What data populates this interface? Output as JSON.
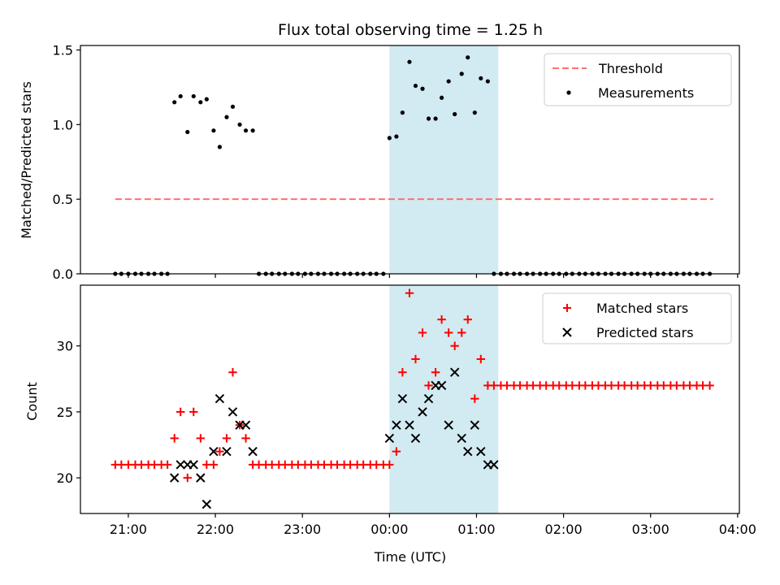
{
  "chart_data": [
    {
      "type": "scatter",
      "title": "Flux total observing time = 1.25 h",
      "xlabel": "",
      "ylabel": "Matched/Predicted stars",
      "x_unit": "hours since 00:00 UTC",
      "xlim": [
        -3.55,
        4.02
      ],
      "ylim": [
        0,
        1.53
      ],
      "yticks": [
        0.0,
        0.5,
        1.0,
        1.5
      ],
      "ytick_labels": [
        "0.0",
        "0.5",
        "1.0",
        "1.5"
      ],
      "shaded_span": [
        0.0,
        1.25
      ],
      "shade_color": "#add8e6",
      "threshold": {
        "name": "Threshold",
        "y": 0.5,
        "x_range": [
          -3.15,
          3.72
        ],
        "color": "#ff7070"
      },
      "series": [
        {
          "name": "Measurements",
          "color": "#000000",
          "x": [
            -3.15,
            -3.08,
            -3.0,
            -2.92,
            -2.85,
            -2.77,
            -2.7,
            -2.62,
            -2.55,
            -2.47,
            -2.4,
            -2.32,
            -2.25,
            -2.17,
            -2.1,
            -2.02,
            -1.95,
            -1.87,
            -1.8,
            -1.72,
            -1.65,
            -1.57,
            -1.5,
            -1.42,
            -1.35,
            -1.27,
            -1.2,
            -1.12,
            -1.05,
            -0.97,
            -0.9,
            -0.82,
            -0.75,
            -0.67,
            -0.6,
            -0.52,
            -0.45,
            -0.37,
            -0.3,
            -0.22,
            -0.15,
            -0.07,
            0.0,
            0.08,
            0.15,
            0.23,
            0.3,
            0.38,
            0.45,
            0.53,
            0.6,
            0.68,
            0.75,
            0.83,
            0.9,
            0.98,
            1.05,
            1.13,
            1.2,
            1.28,
            1.35,
            1.43,
            1.5,
            1.58,
            1.65,
            1.73,
            1.8,
            1.88,
            1.95,
            2.03,
            2.1,
            2.18,
            2.25,
            2.33,
            2.4,
            2.48,
            2.55,
            2.63,
            2.7,
            2.78,
            2.85,
            2.93,
            3.0,
            3.08,
            3.15,
            3.23,
            3.3,
            3.38,
            3.45,
            3.53,
            3.6,
            3.68
          ],
          "y": [
            0,
            0,
            0,
            0,
            0,
            0,
            0,
            0,
            0,
            1.15,
            1.19,
            0.95,
            1.19,
            1.15,
            1.17,
            0.96,
            0.85,
            1.05,
            1.12,
            1.0,
            0.96,
            0.96,
            0,
            0,
            0,
            0,
            0,
            0,
            0,
            0,
            0,
            0,
            0,
            0,
            0,
            0,
            0,
            0,
            0,
            0,
            0,
            0,
            0.91,
            0.92,
            1.08,
            1.42,
            1.26,
            1.24,
            1.04,
            1.04,
            1.18,
            1.29,
            1.07,
            1.34,
            1.45,
            1.08,
            1.31,
            1.29,
            0,
            0,
            0,
            0,
            0,
            0,
            0,
            0,
            0,
            0,
            0,
            0,
            0,
            0,
            0,
            0,
            0,
            0,
            0,
            0,
            0,
            0,
            0,
            0,
            0,
            0,
            0,
            0,
            0,
            0,
            0,
            0,
            0,
            0
          ]
        }
      ],
      "legend_position": "top-right"
    },
    {
      "type": "scatter",
      "title": "",
      "xlabel": "Time (UTC)",
      "ylabel": "Count",
      "x_unit": "hours since 00:00 UTC",
      "xlim": [
        -3.55,
        4.02
      ],
      "ylim": [
        17.3,
        34.6
      ],
      "yticks": [
        20,
        25,
        30
      ],
      "ytick_labels": [
        "20",
        "25",
        "30"
      ],
      "xticks": [
        -3,
        -2,
        -1,
        0,
        1,
        2,
        3,
        4
      ],
      "xtick_labels": [
        "21:00",
        "22:00",
        "23:00",
        "00:00",
        "01:00",
        "02:00",
        "03:00",
        "04:00"
      ],
      "shaded_span": [
        0.0,
        1.25
      ],
      "shade_color": "#add8e6",
      "series": [
        {
          "name": "Matched stars",
          "marker": "+",
          "color": "#ff0000",
          "x": [
            -3.15,
            -3.08,
            -3.0,
            -2.92,
            -2.85,
            -2.77,
            -2.7,
            -2.62,
            -2.55,
            -2.47,
            -2.4,
            -2.32,
            -2.25,
            -2.17,
            -2.1,
            -2.02,
            -1.95,
            -1.87,
            -1.8,
            -1.72,
            -1.65,
            -1.57,
            -1.5,
            -1.42,
            -1.35,
            -1.27,
            -1.2,
            -1.12,
            -1.05,
            -0.97,
            -0.9,
            -0.82,
            -0.75,
            -0.67,
            -0.6,
            -0.52,
            -0.45,
            -0.37,
            -0.3,
            -0.22,
            -0.15,
            -0.07,
            0.0,
            0.08,
            0.15,
            0.23,
            0.3,
            0.38,
            0.45,
            0.53,
            0.6,
            0.68,
            0.75,
            0.83,
            0.9,
            0.98,
            1.05,
            1.13,
            1.2,
            1.28,
            1.35,
            1.43,
            1.5,
            1.58,
            1.65,
            1.73,
            1.8,
            1.88,
            1.95,
            2.03,
            2.1,
            2.18,
            2.25,
            2.33,
            2.4,
            2.48,
            2.55,
            2.63,
            2.7,
            2.78,
            2.85,
            2.93,
            3.0,
            3.08,
            3.15,
            3.23,
            3.3,
            3.38,
            3.45,
            3.53,
            3.6,
            3.68
          ],
          "y": [
            21,
            21,
            21,
            21,
            21,
            21,
            21,
            21,
            21,
            23,
            25,
            20,
            25,
            23,
            21,
            21,
            22,
            23,
            28,
            24,
            23,
            21,
            21,
            21,
            21,
            21,
            21,
            21,
            21,
            21,
            21,
            21,
            21,
            21,
            21,
            21,
            21,
            21,
            21,
            21,
            21,
            21,
            21,
            22,
            28,
            34,
            29,
            31,
            27,
            28,
            32,
            31,
            30,
            31,
            32,
            26,
            29,
            27,
            27,
            27,
            27,
            27,
            27,
            27,
            27,
            27,
            27,
            27,
            27,
            27,
            27,
            27,
            27,
            27,
            27,
            27,
            27,
            27,
            27,
            27,
            27,
            27,
            27,
            27,
            27,
            27,
            27,
            27,
            27,
            27,
            27,
            27
          ]
        },
        {
          "name": "Predicted stars",
          "marker": "x",
          "color": "#000000",
          "x": [
            -2.47,
            -2.4,
            -2.32,
            -2.25,
            -2.17,
            -2.1,
            -2.02,
            -1.95,
            -1.87,
            -1.8,
            -1.72,
            -1.65,
            -1.57,
            0.0,
            0.08,
            0.15,
            0.23,
            0.3,
            0.38,
            0.45,
            0.53,
            0.6,
            0.68,
            0.75,
            0.83,
            0.9,
            0.98,
            1.05,
            1.13,
            1.2
          ],
          "y": [
            20,
            21,
            21,
            21,
            20,
            18,
            22,
            26,
            22,
            25,
            24,
            24,
            22,
            23,
            24,
            26,
            24,
            23,
            25,
            26,
            27,
            27,
            24,
            28,
            23,
            22,
            24,
            22,
            21,
            21
          ]
        }
      ],
      "legend_position": "top-right"
    }
  ]
}
